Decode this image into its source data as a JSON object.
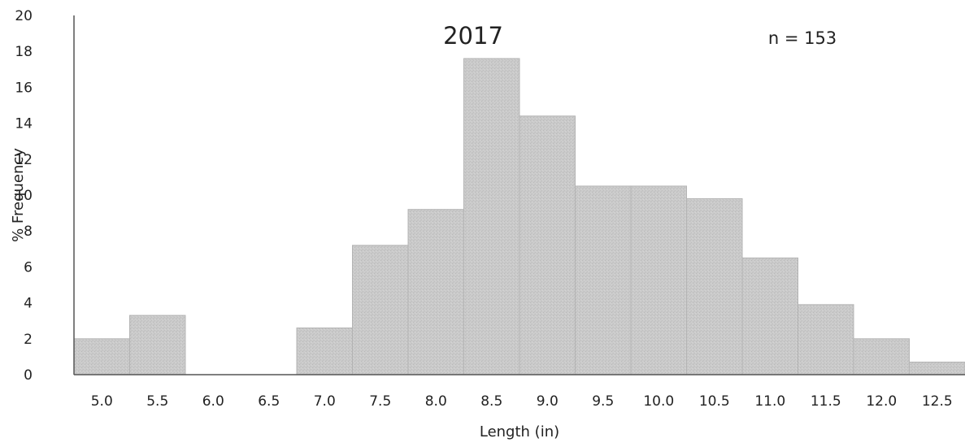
{
  "chart_data": {
    "type": "bar",
    "title": "2017",
    "annotation": "n = 153",
    "xlabel": "Length (in)",
    "ylabel": "% Frequency",
    "ylim": [
      0,
      20
    ],
    "yticks": [
      "0",
      "2",
      "4",
      "6",
      "8",
      "10",
      "12",
      "14",
      "16",
      "18",
      "20"
    ],
    "categories": [
      "5.0",
      "5.5",
      "6.0",
      "6.5",
      "7.0",
      "7.5",
      "8.0",
      "8.5",
      "9.0",
      "9.5",
      "10.0",
      "10.5",
      "11.0",
      "11.5",
      "12.0",
      "12.5"
    ],
    "values": [
      2.0,
      3.3,
      0,
      0,
      2.6,
      7.2,
      9.2,
      17.6,
      14.4,
      10.5,
      10.5,
      9.8,
      6.5,
      3.9,
      2.0,
      0.7
    ],
    "grid": false,
    "legend": "none",
    "bar_color": "#c8c8c8",
    "bar_edge_color": "#b4b4b4",
    "axis_color": "#555555"
  }
}
